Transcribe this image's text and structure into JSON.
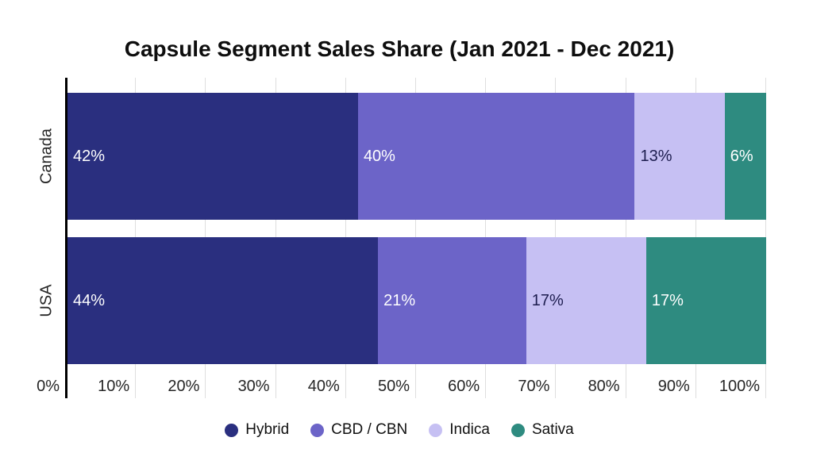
{
  "chart_data": {
    "type": "bar",
    "orientation": "horizontal",
    "stacked": true,
    "title": "Capsule Segment Sales Share (Jan 2021 - Dec 2021)",
    "categories": [
      "Canada",
      "USA"
    ],
    "series": [
      {
        "name": "Hybrid",
        "color": "#2a2f7f",
        "label_color": "#ffffff",
        "values": [
          42,
          44
        ]
      },
      {
        "name": "CBD / CBN",
        "color": "#6c64c8",
        "label_color": "#ffffff",
        "values": [
          40,
          21
        ]
      },
      {
        "name": "Indica",
        "color": "#c6c0f3",
        "label_color": "#1d1d4f",
        "values": [
          13,
          17
        ]
      },
      {
        "name": "Sativa",
        "color": "#2e8b80",
        "label_color": "#ffffff",
        "values": [
          6,
          17
        ]
      }
    ],
    "segment_labels": [
      [
        "42%",
        "40%",
        "13%",
        "6%"
      ],
      [
        "44%",
        "21%",
        "17%",
        "17%"
      ]
    ],
    "x_ticks": [
      "0%",
      "10%",
      "20%",
      "30%",
      "40%",
      "50%",
      "60%",
      "70%",
      "80%",
      "90%",
      "100%"
    ],
    "xlim": [
      0,
      100
    ],
    "grid": "vertical",
    "legend_position": "bottom",
    "colors": {
      "background": "#ffffff",
      "gridline": "#dedede",
      "axis_line": "#000000",
      "tick_text": "#262626",
      "title_text": "#0e0e0e"
    }
  }
}
